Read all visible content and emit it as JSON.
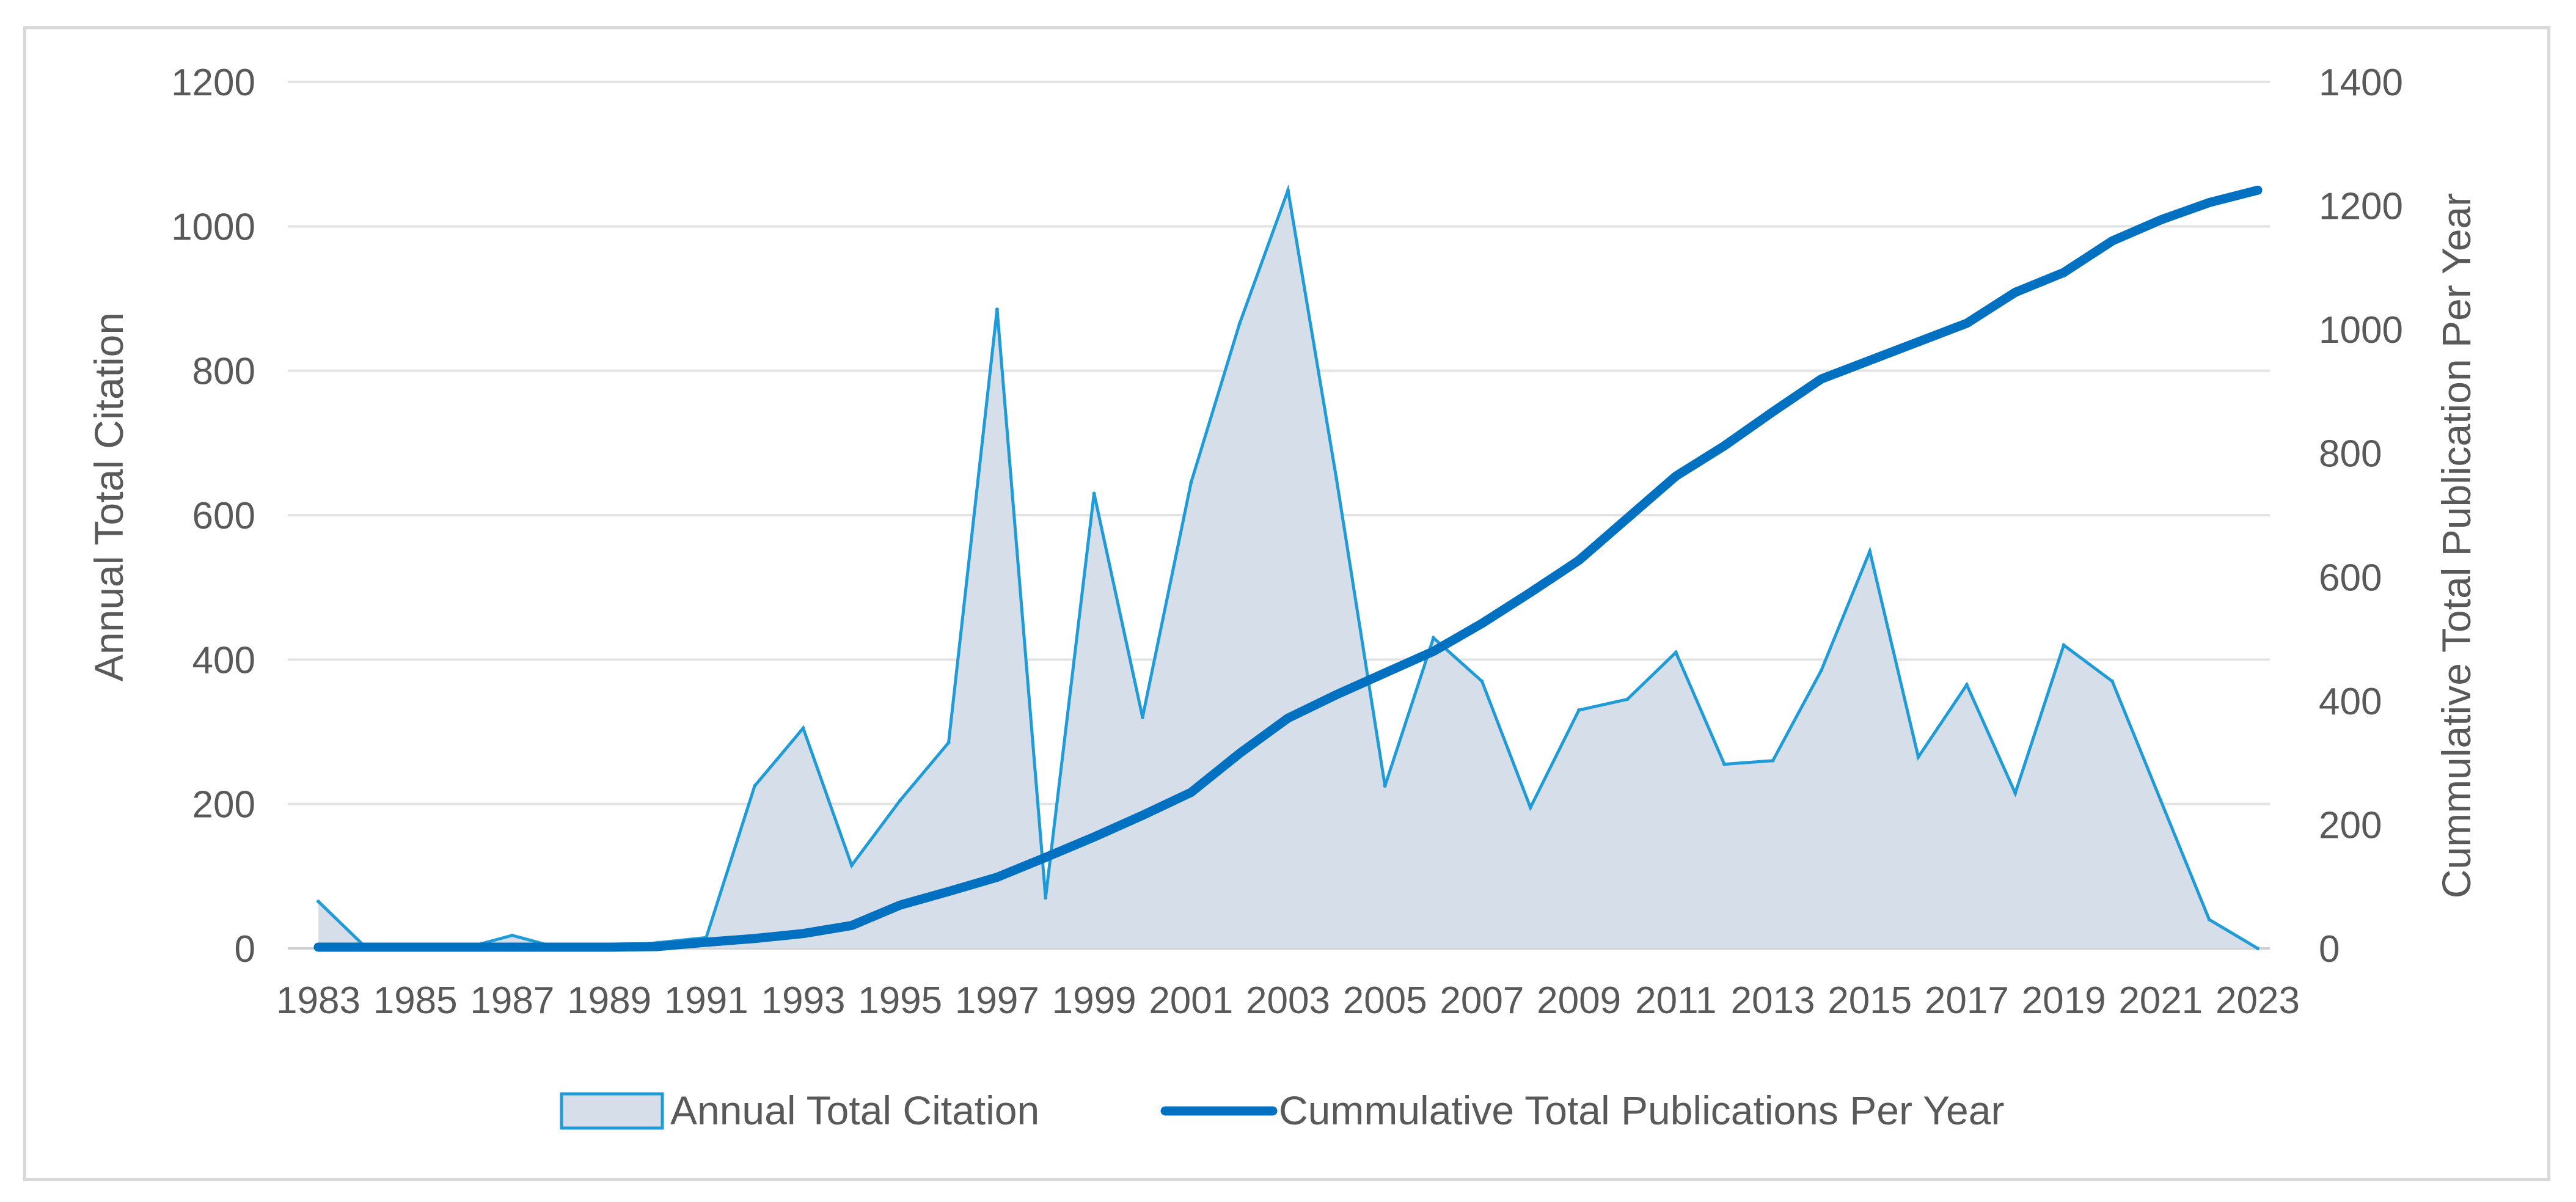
{
  "chart_data": {
    "type": "area",
    "title": "",
    "x": [
      1983,
      1984,
      1985,
      1986,
      1987,
      1988,
      1989,
      1990,
      1991,
      1992,
      1993,
      1994,
      1995,
      1996,
      1997,
      1998,
      1999,
      2000,
      2001,
      2002,
      2003,
      2004,
      2005,
      2006,
      2007,
      2008,
      2009,
      2010,
      2011,
      2012,
      2013,
      2014,
      2015,
      2016,
      2017,
      2018,
      2019,
      2020,
      2021,
      2022,
      2023
    ],
    "x_tick_labels": [
      "1983",
      "1985",
      "1987",
      "1989",
      "1991",
      "1993",
      "1995",
      "1997",
      "1999",
      "2001",
      "2003",
      "2005",
      "2007",
      "2009",
      "2011",
      "2013",
      "2015",
      "2017",
      "2019",
      "2021",
      "2023"
    ],
    "y_left": {
      "label": "Annual Total Citation",
      "lim": [
        0,
        1200
      ],
      "ticks": [
        "0",
        "200",
        "400",
        "600",
        "800",
        "1000",
        "1200"
      ]
    },
    "y_right": {
      "label": "Cummulative Total Publication Per Year",
      "lim": [
        0,
        1400
      ],
      "ticks": [
        "0",
        "200",
        "400",
        "600",
        "800",
        "1000",
        "1200",
        "1400"
      ]
    },
    "series": [
      {
        "name": "Annual Total Citation",
        "type": "area",
        "axis": "left",
        "color": "#1f9bd7",
        "fill": "#d6dfe9",
        "values": [
          65,
          0,
          0,
          0,
          18,
          0,
          0,
          8,
          15,
          225,
          305,
          115,
          205,
          285,
          885,
          70,
          630,
          320,
          645,
          865,
          1050,
          650,
          225,
          430,
          370,
          195,
          330,
          345,
          410,
          255,
          260,
          385,
          550,
          265,
          365,
          215,
          420,
          370,
          205,
          40,
          0
        ]
      },
      {
        "name": "Cummulative Total Publications Per Year",
        "type": "line",
        "axis": "right",
        "color": "#0070c0",
        "values": [
          2,
          2,
          2,
          2,
          2,
          2,
          2,
          3,
          10,
          16,
          24,
          37,
          70,
          92,
          115,
          147,
          180,
          215,
          252,
          315,
          372,
          410,
          445,
          480,
          525,
          575,
          627,
          695,
          763,
          812,
          867,
          920,
          950,
          980,
          1010,
          1060,
          1092,
          1143,
          1177,
          1205,
          1225
        ]
      }
    ],
    "legend": {
      "position": "bottom",
      "items": [
        "Annual Total Citation",
        "Cummulative Total Publications Per Year"
      ]
    },
    "grid": true
  }
}
